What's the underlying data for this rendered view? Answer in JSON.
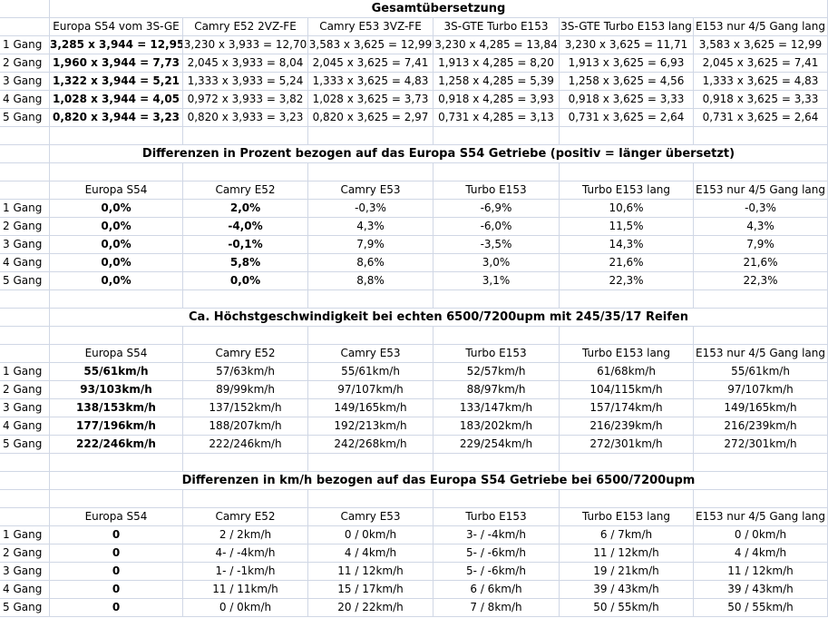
{
  "sheet": {
    "colors": {
      "grid_line": "#d0d7e5",
      "text": "#000000",
      "background": "#ffffff"
    },
    "gear_labels": [
      "1 Gang",
      "2 Gang",
      "3 Gang",
      "4 Gang",
      "5 Gang"
    ],
    "tables": [
      {
        "id": "gesamtuebersetzung",
        "title": "Gesamtübersetzung",
        "gap_after_title": false,
        "headers": [
          "Europa S54 vom 3S-GE",
          "Camry E52 2VZ-FE",
          "Camry E53 3VZ-FE",
          "3S-GTE Turbo E153",
          "3S-GTE Turbo E153 lang",
          "E153 nur 4/5 Gang lang"
        ],
        "bold_columns": [
          0
        ],
        "rows": [
          [
            "3,285 x 3,944 = 12,95",
            "3,230 x 3,933 = 12,70",
            "3,583 x 3,625 = 12,99",
            "3,230 x 4,285 = 13,84",
            "3,230 x 3,625 = 11,71",
            "3,583 x 3,625 = 12,99"
          ],
          [
            "1,960 x 3,944 = 7,73",
            "2,045 x 3,933 = 8,04",
            "2,045 x 3,625 = 7,41",
            "1,913 x 4,285 = 8,20",
            "1,913 x 3,625 = 6,93",
            "2,045 x 3,625 = 7,41"
          ],
          [
            "1,322 x 3,944 = 5,21",
            "1,333 x 3,933 = 5,24",
            "1,333 x 3,625 = 4,83",
            "1,258 x 4,285 = 5,39",
            "1,258 x 3,625 = 4,56",
            "1,333 x 3,625 = 4,83"
          ],
          [
            "1,028 x 3,944 = 4,05",
            "0,972 x 3,933 = 3,82",
            "1,028 x 3,625 = 3,73",
            "0,918 x 4,285 = 3,93",
            "0,918 x 3,625 = 3,33",
            "0,918 x 3,625 = 3,33"
          ],
          [
            "0,820 x 3,944 = 3,23",
            "0,820 x 3,933 = 3,23",
            "0,820 x 3,625 = 2,97",
            "0,731 x 4,285 = 3,13",
            "0,731 x 3,625 = 2,64",
            "0,731 x 3,625 = 2,64"
          ]
        ]
      },
      {
        "id": "differenzen-prozent",
        "title": "Differenzen in Prozent bezogen auf das Europa S54 Getriebe (positiv = länger übersetzt)",
        "gap_after_title": true,
        "headers": [
          "Europa S54",
          "Camry E52",
          "Camry E53",
          "Turbo E153",
          "Turbo E153 lang",
          "E153 nur 4/5 Gang lang"
        ],
        "bold_columns": [
          0,
          1
        ],
        "rows": [
          [
            "0,0%",
            "2,0%",
            "-0,3%",
            "-6,9%",
            "10,6%",
            "-0,3%"
          ],
          [
            "0,0%",
            "-4,0%",
            "4,3%",
            "-6,0%",
            "11,5%",
            "4,3%"
          ],
          [
            "0,0%",
            "-0,1%",
            "7,9%",
            "-3,5%",
            "14,3%",
            "7,9%"
          ],
          [
            "0,0%",
            "5,8%",
            "8,6%",
            "3,0%",
            "21,6%",
            "21,6%"
          ],
          [
            "0,0%",
            "0,0%",
            "8,8%",
            "3,1%",
            "22,3%",
            "22,3%"
          ]
        ]
      },
      {
        "id": "hoechstgeschwindigkeit",
        "title": "Ca. Höchstgeschwindigkeit bei echten 6500/7200upm mit 245/35/17 Reifen",
        "gap_after_title": true,
        "headers": [
          "Europa S54",
          "Camry E52",
          "Camry E53",
          "Turbo E153",
          "Turbo E153 lang",
          "E153 nur 4/5 Gang lang"
        ],
        "bold_columns": [
          0
        ],
        "rows": [
          [
            "55/61km/h",
            "57/63km/h",
            "55/61km/h",
            "52/57km/h",
            "61/68km/h",
            "55/61km/h"
          ],
          [
            "93/103km/h",
            "89/99km/h",
            "97/107km/h",
            "88/97km/h",
            "104/115km/h",
            "97/107km/h"
          ],
          [
            "138/153km/h",
            "137/152km/h",
            "149/165km/h",
            "133/147km/h",
            "157/174km/h",
            "149/165km/h"
          ],
          [
            "177/196km/h",
            "188/207km/h",
            "192/213km/h",
            "183/202km/h",
            "216/239km/h",
            "216/239km/h"
          ],
          [
            "222/246km/h",
            "222/246km/h",
            "242/268km/h",
            "229/254km/h",
            "272/301km/h",
            "272/301km/h"
          ]
        ]
      },
      {
        "id": "differenzen-kmh",
        "title": "Differenzen in km/h bezogen auf das Europa S54 Getriebe bei 6500/7200upm",
        "gap_after_title": true,
        "headers": [
          "Europa S54",
          "Camry E52",
          "Camry E53",
          "Turbo E153",
          "Turbo E153 lang",
          "E153 nur 4/5 Gang lang"
        ],
        "bold_columns": [
          0
        ],
        "rows": [
          [
            "0",
            "2 / 2km/h",
            "0 / 0km/h",
            "3- / -4km/h",
            "6 / 7km/h",
            "0 / 0km/h"
          ],
          [
            "0",
            "4- / -4km/h",
            "4 / 4km/h",
            "5- / -6km/h",
            "11 / 12km/h",
            "4 / 4km/h"
          ],
          [
            "0",
            "1- / -1km/h",
            "11 / 12km/h",
            "5- / -6km/h",
            "19 / 21km/h",
            "11 / 12km/h"
          ],
          [
            "0",
            "11 / 11km/h",
            "15 / 17km/h",
            "6 / 6km/h",
            "39 / 43km/h",
            "39 / 43km/h"
          ],
          [
            "0",
            "0 / 0km/h",
            "20 / 22km/h",
            "7 / 8km/h",
            "50 / 55km/h",
            "50 / 55km/h"
          ]
        ]
      }
    ]
  }
}
